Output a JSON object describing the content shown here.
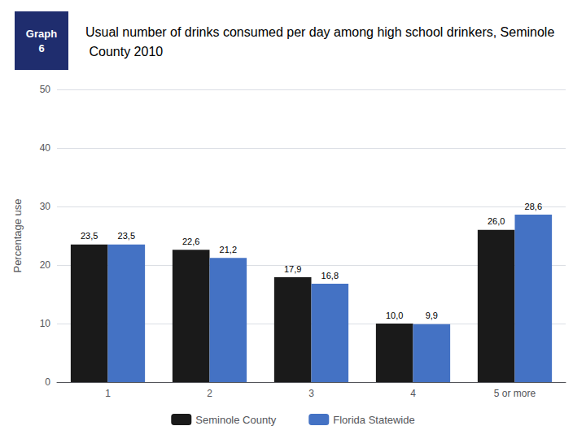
{
  "chart_data": {
    "type": "bar",
    "title": "Usual number of drinks consumed per day among high school drinkers, Seminole County 2010",
    "annotations": [
      "Graph",
      "6"
    ],
    "categories": [
      "1",
      "2",
      "3",
      "4",
      "5 or more"
    ],
    "series": [
      {
        "name": "Seminole County",
        "color": "#1a1a1a",
        "values": [
          23.5,
          22.6,
          17.9,
          10.0,
          26.0
        ],
        "value_labels": [
          "23,5",
          "22,6",
          "17,9",
          "10,0",
          "26,0"
        ]
      },
      {
        "name": "Florida Statewide",
        "color": "#4472c4",
        "values": [
          23.5,
          21.2,
          16.8,
          9.9,
          28.6
        ],
        "value_labels": [
          "23,5",
          "21,2",
          "16,8",
          "9,9",
          "28,6"
        ]
      }
    ],
    "ylabel": "Percentage use",
    "ylim": [
      0,
      50
    ],
    "yticks": [
      0,
      10,
      20,
      30,
      40,
      50
    ],
    "grid": true,
    "legend": "bottom",
    "data_labels": true
  }
}
